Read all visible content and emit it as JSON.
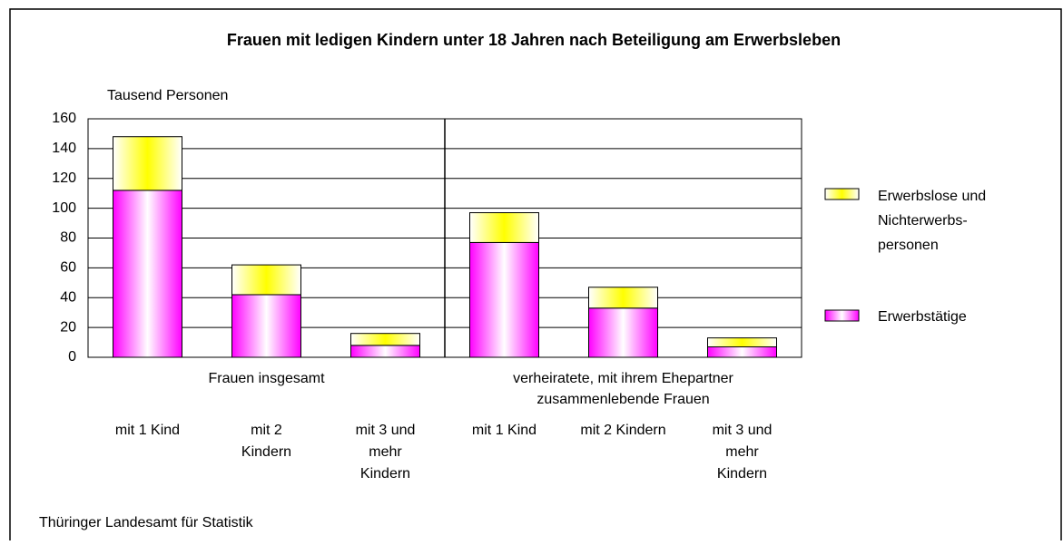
{
  "chart_data": {
    "type": "stacked-bar",
    "title": "Frauen mit ledigen Kindern unter 18 Jahren nach Beteiligung am Erwerbsleben",
    "y_label": "Tausend Personen",
    "source": "Thüringer Landesamt für Statistik",
    "groups": [
      [
        "Frauen insgesamt"
      ],
      [
        "verheiratete, mit ihrem Ehepartner",
        "zusammenlebende Frauen"
      ]
    ],
    "categories": [
      [
        "mit 1 Kind"
      ],
      [
        "mit 2",
        "Kindern"
      ],
      [
        "mit 3 und",
        "mehr",
        "Kindern"
      ],
      [
        "mit 1 Kind"
      ],
      [
        "mit 2 Kindern"
      ],
      [
        "mit 3 und",
        "mehr",
        "Kindern"
      ]
    ],
    "series": [
      {
        "name": [
          "Erwerbstätige"
        ],
        "color": "#ff00ff",
        "values": [
          112,
          42,
          8,
          77,
          33,
          7
        ]
      },
      {
        "name": [
          "Erwerbslose und",
          "Nichterwerbs-",
          "personen"
        ],
        "color": "#ffff00",
        "values": [
          36,
          20,
          8,
          20,
          14,
          6
        ]
      }
    ],
    "ylim": [
      0,
      160
    ],
    "yticks": [
      0,
      20,
      40,
      60,
      80,
      100,
      120,
      140,
      160
    ],
    "grid": true
  }
}
